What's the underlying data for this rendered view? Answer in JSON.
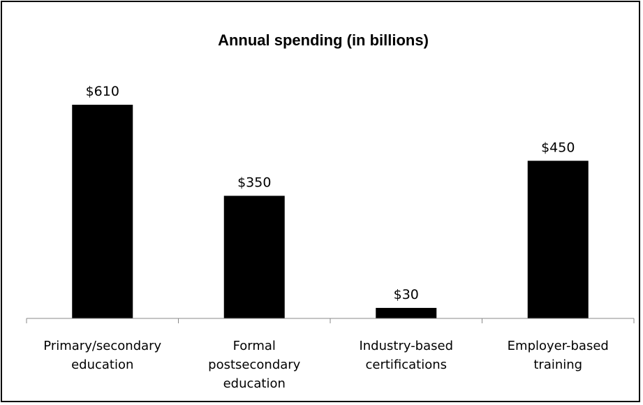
{
  "chart_data": {
    "type": "bar",
    "title": "Annual spending (in billions)",
    "categories": [
      [
        "Primary/secondary",
        "education"
      ],
      [
        "Formal",
        "postsecondary",
        "education"
      ],
      [
        "Industry-based",
        "certifications"
      ],
      [
        "Employer-based",
        "training"
      ]
    ],
    "values": [
      610,
      350,
      30,
      450
    ],
    "data_labels": [
      "$610",
      "$350",
      "$30",
      "$450"
    ],
    "bar_color": "#000000",
    "xlabel": "",
    "ylabel": "",
    "ylim": [
      0,
      610
    ],
    "grid": false,
    "legend": false
  }
}
